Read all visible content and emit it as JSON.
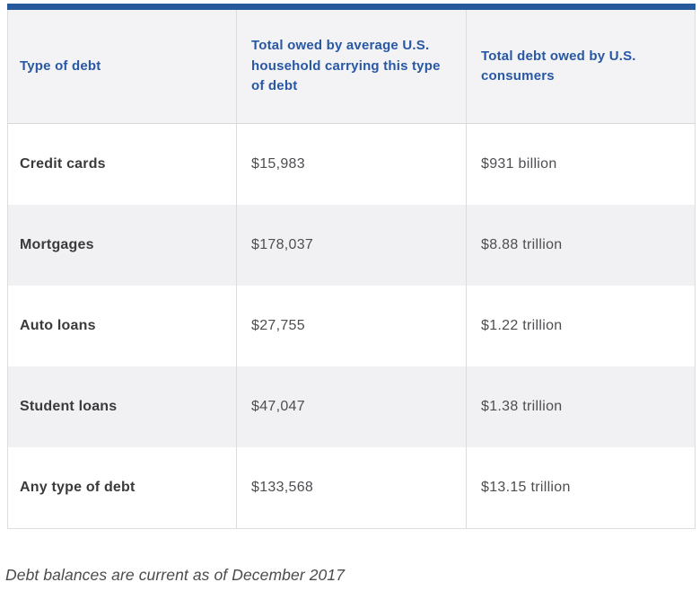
{
  "colors": {
    "top_bar": "#265a9d",
    "header_text": "#2857a4",
    "header_bg": "#f3f3f5",
    "alt_row_bg": "#f1f1f3",
    "border": "#dddddf"
  },
  "table": {
    "columns": [
      "Type of debt",
      "Total owed by average U.S. household carrying this type of debt",
      "Total debt owed by U.S. consumers"
    ],
    "rows": [
      {
        "type": "Credit cards",
        "household": "$15,983",
        "total": "$931 billion"
      },
      {
        "type": "Mortgages",
        "household": "$178,037",
        "total": "$8.88 trillion"
      },
      {
        "type": "Auto loans",
        "household": "$27,755",
        "total": "$1.22 trillion"
      },
      {
        "type": "Student loans",
        "household": "$47,047",
        "total": "$1.38 trillion"
      },
      {
        "type": "Any type of debt",
        "household": "$133,568",
        "total": "$13.15 trillion"
      }
    ]
  },
  "caption": "Debt balances are current as of December 2017",
  "chart_data": {
    "type": "table",
    "title": "",
    "columns": [
      "Type of debt",
      "Total owed by average U.S. household carrying this type of debt",
      "Total debt owed by U.S. consumers"
    ],
    "categories": [
      "Credit cards",
      "Mortgages",
      "Auto loans",
      "Student loans",
      "Any type of debt"
    ],
    "series": [
      {
        "name": "Total owed by average U.S. household carrying this type of debt",
        "values": [
          15983,
          178037,
          27755,
          47047,
          133568
        ],
        "unit": "USD"
      },
      {
        "name": "Total debt owed by U.S. consumers",
        "values": [
          931000000000,
          8880000000000,
          1220000000000,
          1380000000000,
          13150000000000
        ],
        "unit": "USD",
        "labels": [
          "$931 billion",
          "$8.88 trillion",
          "$1.22 trillion",
          "$1.38 trillion",
          "$13.15 trillion"
        ]
      }
    ],
    "footnote": "Debt balances are current as of December 2017"
  }
}
